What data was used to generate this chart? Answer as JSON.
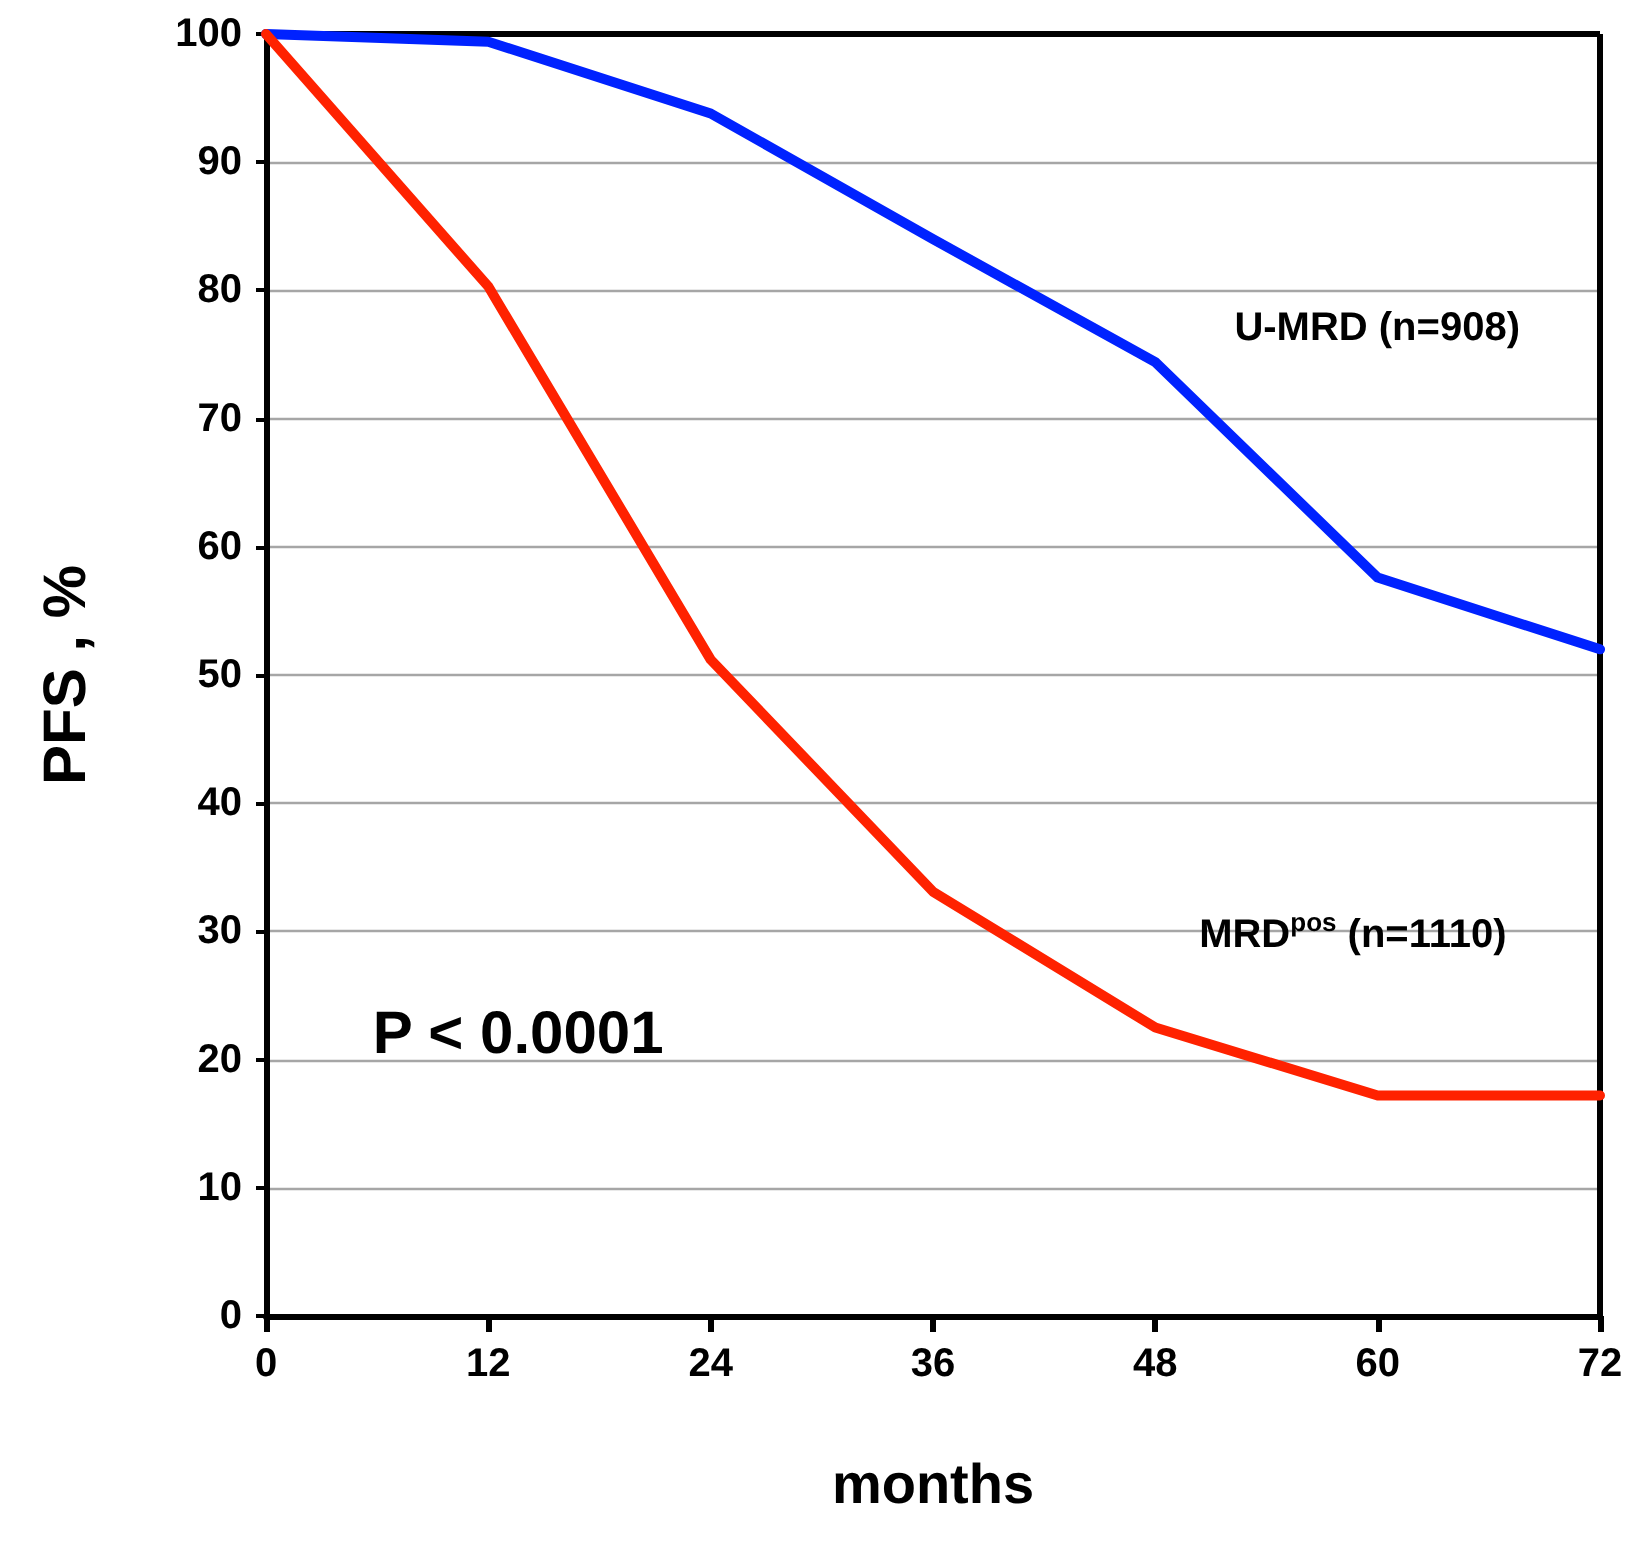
{
  "chart_data": {
    "type": "line",
    "xlabel": "months",
    "ylabel": "PFS , %",
    "x": [
      0,
      12,
      24,
      36,
      48,
      60,
      72
    ],
    "series": [
      {
        "name": "U-MRD (n=908)",
        "color": "#0022ff",
        "values": [
          100,
          99.4,
          93.8,
          84,
          74.4,
          57.6,
          52
        ]
      },
      {
        "name": "MRD$^{pos}$ (n=1110)",
        "color": "#ff2200",
        "values": [
          100,
          80.3,
          51.2,
          33.1,
          22.5,
          17.2,
          17.2
        ]
      }
    ],
    "xlim": [
      0,
      72
    ],
    "xticks": [
      0,
      12,
      24,
      36,
      48,
      60,
      72
    ],
    "ylim": [
      0,
      100
    ],
    "yticks": [
      0,
      10,
      20,
      30,
      40,
      50,
      60,
      70,
      80,
      90,
      100
    ],
    "grid": "y",
    "legend": false,
    "marker": "none",
    "line_style": "solid",
    "annotations": [
      "P < 0.0001"
    ]
  }
}
